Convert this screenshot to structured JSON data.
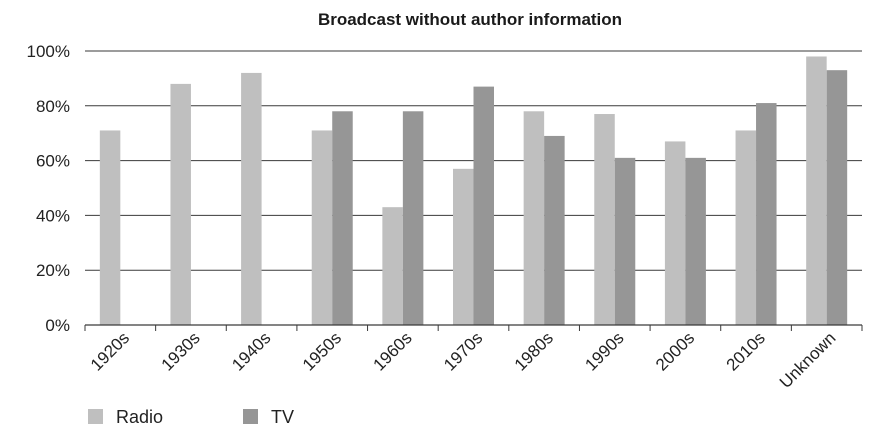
{
  "chart_data": {
    "type": "bar",
    "title": "Broadcast without author information",
    "xlabel": "",
    "ylabel": "",
    "categories": [
      "1920s",
      "1930s",
      "1940s",
      "1950s",
      "1960s",
      "1970s",
      "1980s",
      "1990s",
      "2000s",
      "2010s",
      "Unknown"
    ],
    "series": [
      {
        "name": "Radio",
        "color": "#bfbfbf",
        "values": [
          71,
          88,
          92,
          71,
          43,
          57,
          78,
          77,
          67,
          71,
          98
        ]
      },
      {
        "name": "TV",
        "color": "#969696",
        "values": [
          null,
          null,
          null,
          78,
          78,
          87,
          69,
          61,
          61,
          81,
          93
        ]
      }
    ],
    "ylim": [
      0,
      100
    ],
    "yticks": [
      0,
      20,
      40,
      60,
      80,
      100
    ],
    "ytick_labels": [
      "0%",
      "20%",
      "40%",
      "60%",
      "80%",
      "100%"
    ],
    "grid": true,
    "legend_position": "bottom-left"
  }
}
